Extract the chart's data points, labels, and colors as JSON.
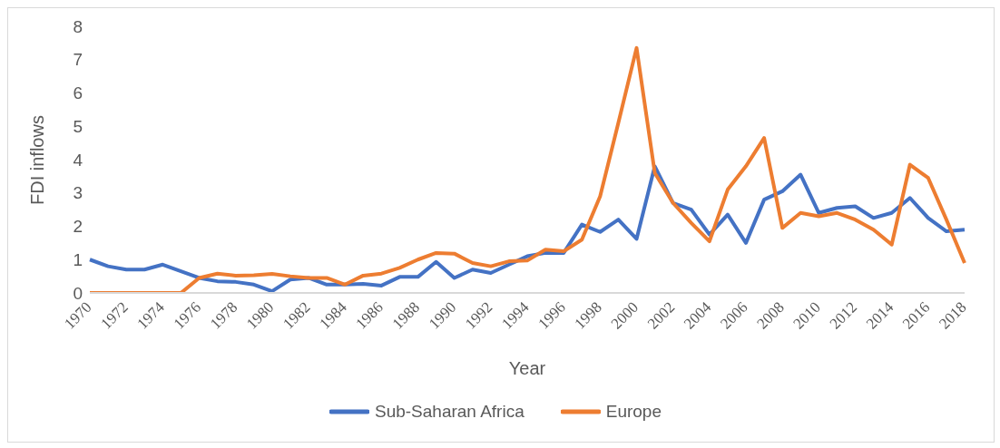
{
  "chart_data": {
    "type": "line",
    "xlabel": "Year",
    "ylabel": "FDI inflows",
    "categories": [
      "1970",
      null,
      "1972",
      null,
      "1974",
      null,
      "1976",
      null,
      "1978",
      null,
      "1980",
      null,
      "1982",
      null,
      "1984",
      null,
      "1986",
      null,
      "1988",
      null,
      "1990",
      null,
      "1992",
      null,
      "1994",
      null,
      "1996",
      null,
      "1998",
      null,
      "2000",
      null,
      "2002",
      null,
      "2004",
      null,
      "2006",
      null,
      "2008",
      null,
      "2010",
      null,
      "2012",
      null,
      "2014",
      null,
      "2016",
      null,
      "2018"
    ],
    "series": [
      {
        "name": "Sub-Saharan Africa",
        "color": "#4472c4",
        "values": [
          1.0,
          0.8,
          0.7,
          0.7,
          0.85,
          0.65,
          0.45,
          0.35,
          0.33,
          0.25,
          0.05,
          0.4,
          0.45,
          0.25,
          0.25,
          0.27,
          0.22,
          0.48,
          0.48,
          0.93,
          0.45,
          0.7,
          0.6,
          0.85,
          1.1,
          1.2,
          1.2,
          2.05,
          1.83,
          2.2,
          1.62,
          3.8,
          2.7,
          2.5,
          1.75,
          2.35,
          1.5,
          2.8,
          3.05,
          3.55,
          2.4,
          2.55,
          2.6,
          2.25,
          2.4,
          2.85,
          2.25,
          1.85,
          1.9
        ]
      },
      {
        "name": "Europe",
        "color": "#ed7d31",
        "values": [
          0,
          0,
          0,
          0,
          0,
          0,
          0.45,
          0.58,
          0.52,
          0.53,
          0.57,
          0.5,
          0.45,
          0.45,
          0.25,
          0.52,
          0.58,
          0.75,
          1.0,
          1.2,
          1.18,
          0.9,
          0.8,
          0.95,
          0.97,
          1.3,
          1.25,
          1.6,
          2.9,
          5.1,
          7.35,
          3.6,
          2.7,
          2.1,
          1.55,
          3.1,
          3.8,
          4.65,
          1.95,
          2.4,
          2.3,
          2.4,
          2.2,
          1.9,
          1.45,
          3.85,
          3.45,
          2.2,
          0.9
        ]
      }
    ],
    "ylim": [
      0,
      8
    ],
    "yticks": [
      0,
      1,
      2,
      3,
      4,
      5,
      6,
      7,
      8
    ],
    "grid": false,
    "legend": "bottom",
    "marker": "none",
    "line_style": "solid"
  }
}
